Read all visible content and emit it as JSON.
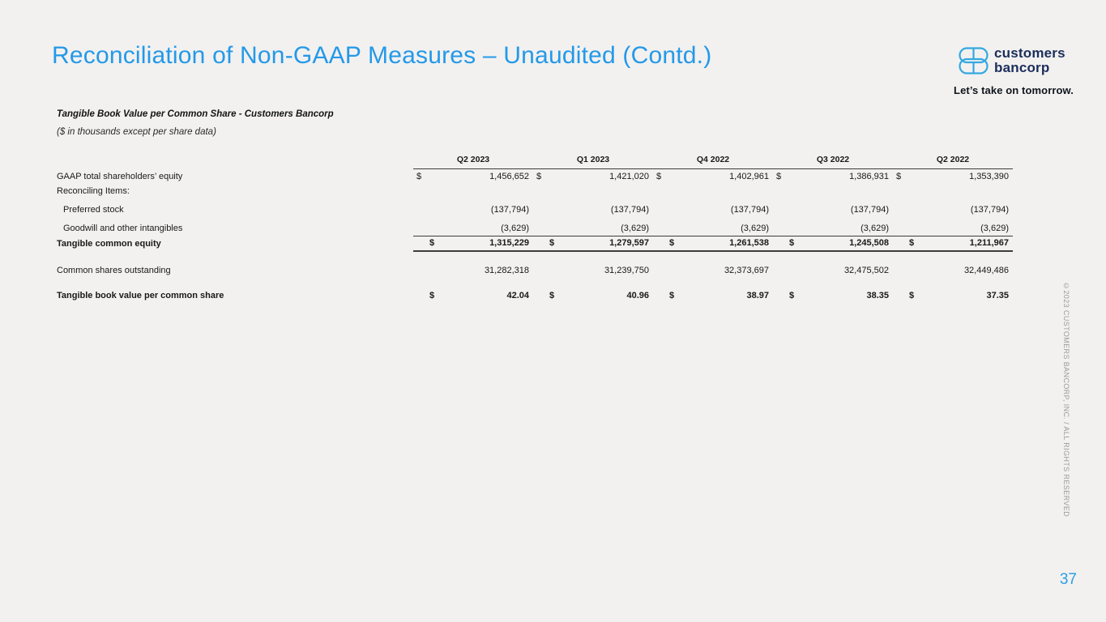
{
  "page": {
    "title": "Reconciliation of Non-GAAP Measures – Unaudited (Contd.)",
    "page_number": "37",
    "copyright": "©2023 CUSTOMERS BANCORP, INC. / ALL RIGHTS RESERVED"
  },
  "brand": {
    "logo_line1": "customers",
    "logo_line2": "bancorp",
    "tagline": "Let’s take on tomorrow.",
    "colors": {
      "accent_blue": "#2499e8",
      "logo_blue": "#35a8e0",
      "navy": "#1b2d5b"
    }
  },
  "table": {
    "title": "Tangible Book Value per Common Share - Customers Bancorp",
    "subtitle": "($ in thousands except per share data)",
    "currency_symbol": "$",
    "columns": [
      "Q2 2023",
      "Q1 2023",
      "Q4 2022",
      "Q3 2022",
      "Q2 2022"
    ],
    "rows": [
      {
        "label": "GAAP total shareholders’ equity",
        "indent": false,
        "bold": false,
        "total": false,
        "dollar": true,
        "values": [
          "1,456,652",
          "1,421,020",
          "1,402,961",
          "1,386,931",
          "1,353,390"
        ]
      },
      {
        "label": "Reconciling Items:",
        "indent": false,
        "bold": false,
        "total": false,
        "dollar": false,
        "values": []
      },
      {
        "label": "Preferred stock",
        "indent": true,
        "bold": false,
        "total": false,
        "dollar": false,
        "values": [
          "(137,794)",
          "(137,794)",
          "(137,794)",
          "(137,794)",
          "(137,794)"
        ]
      },
      {
        "label": "Goodwill and other intangibles",
        "indent": true,
        "bold": false,
        "total": false,
        "dollar": false,
        "values": [
          "(3,629)",
          "(3,629)",
          "(3,629)",
          "(3,629)",
          "(3,629)"
        ]
      },
      {
        "label": "Tangible common equity",
        "indent": false,
        "bold": true,
        "total": true,
        "dollar": true,
        "values": [
          "1,315,229",
          "1,279,597",
          "1,261,538",
          "1,245,508",
          "1,211,967"
        ]
      },
      {
        "label": "",
        "spacer": true,
        "values": []
      },
      {
        "label": "Common shares outstanding",
        "indent": false,
        "bold": false,
        "total": false,
        "dollar": false,
        "values": [
          "31,282,318",
          "31,239,750",
          "32,373,697",
          "32,475,502",
          "32,449,486"
        ]
      },
      {
        "label": "",
        "spacer": true,
        "values": []
      },
      {
        "label": "Tangible book value per common share",
        "indent": false,
        "bold": true,
        "total": false,
        "dollar": true,
        "values": [
          "42.04",
          "40.96",
          "38.97",
          "38.35",
          "37.35"
        ]
      }
    ]
  }
}
